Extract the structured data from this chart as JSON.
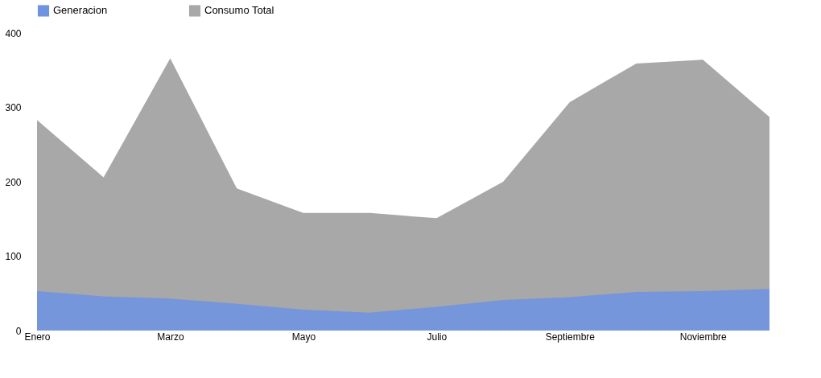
{
  "chart_data": {
    "type": "area",
    "categories": [
      "Enero",
      null,
      "Marzo",
      null,
      "Mayo",
      null,
      "Julio",
      null,
      "Septiembre",
      null,
      "Noviembre",
      null
    ],
    "series": [
      {
        "name": "Generacion",
        "color": "#6f93e0",
        "values": [
          53,
          46,
          43,
          36,
          28,
          24,
          32,
          41,
          45,
          52,
          53,
          56
        ]
      },
      {
        "name": "Consumo Total",
        "color": "#a8a8a8",
        "values": [
          283,
          206,
          366,
          191,
          158,
          158,
          151,
          200,
          307,
          359,
          364,
          287
        ]
      }
    ],
    "ylim": [
      0,
      400
    ],
    "yticks": [
      0,
      100,
      200,
      300,
      400
    ],
    "grid": false,
    "legend": "top"
  }
}
